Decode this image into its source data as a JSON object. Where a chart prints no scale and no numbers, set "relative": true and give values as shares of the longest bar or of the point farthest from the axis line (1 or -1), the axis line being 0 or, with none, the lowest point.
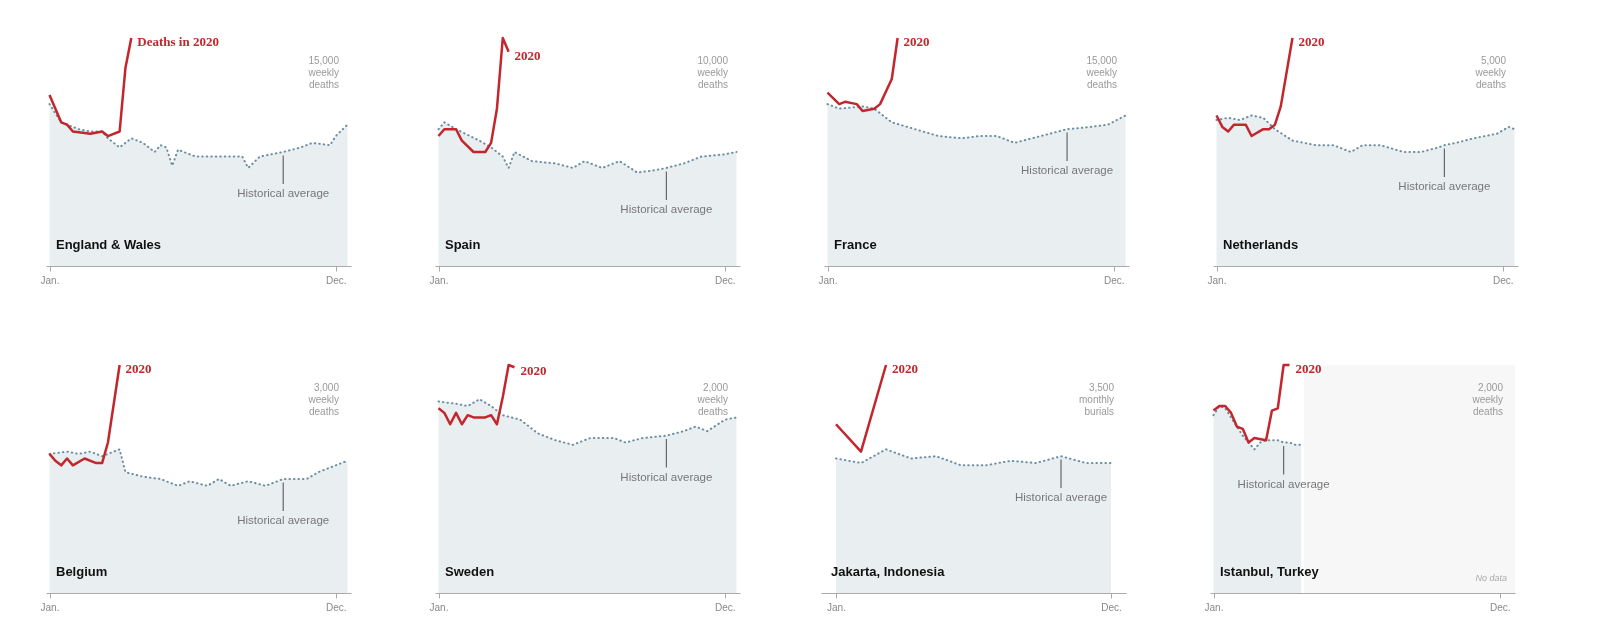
{
  "chart_data": [
    {
      "type": "line",
      "title": "England & Wales",
      "relative": true,
      "line_style": "solid",
      "categories": [
        "Jan.",
        null,
        null,
        null,
        null,
        null,
        null,
        null,
        null,
        null,
        null,
        null,
        null,
        null,
        null,
        null,
        null,
        null,
        null,
        null,
        null,
        null,
        null,
        null,
        null,
        null,
        null,
        null,
        null,
        null,
        null,
        null,
        null,
        null,
        null,
        null,
        null,
        null,
        null,
        null,
        null,
        null,
        null,
        null,
        null,
        null,
        null,
        null,
        null,
        "Dec.",
        null,
        null
      ],
      "annotations": [
        "15,000 weekly deaths",
        "Historical average"
      ],
      "series": [
        {
          "type": "area",
          "line_style": "dotted",
          "color": "#6b8ea3",
          "values": [
            0.71,
            null,
            0.63,
            null,
            null,
            0.6,
            null,
            0.59,
            null,
            0.59,
            0.56,
            null,
            0.52,
            null,
            0.56,
            null,
            0.54,
            null,
            0.5,
            0.53,
            0.52,
            0.44,
            0.51,
            null,
            null,
            0.48,
            null,
            null,
            0.48,
            null,
            null,
            null,
            null,
            0.48,
            0.43,
            null,
            0.48,
            null,
            0.49,
            null,
            0.5,
            null,
            null,
            0.52,
            null,
            0.54,
            null,
            null,
            0.53,
            0.57,
            null,
            0.62
          ]
        },
        {
          "name": "Deaths in 2020",
          "color": "#c1272d",
          "values": [
            0.75,
            null,
            0.63,
            0.62,
            0.59,
            null,
            null,
            0.58,
            null,
            0.59,
            0.57,
            null,
            0.59,
            0.87,
            1.0,
            null,
            null,
            null,
            null,
            null,
            null,
            null,
            null,
            null,
            null,
            null,
            null,
            null,
            null,
            null,
            null,
            null,
            null,
            null,
            null,
            null,
            null,
            null,
            null,
            null,
            null,
            null,
            null,
            null,
            null,
            null,
            null,
            null,
            null,
            null,
            null,
            null
          ]
        }
      ]
    },
    {
      "type": "line",
      "title": "Spain",
      "relative": true,
      "line_style": "solid",
      "categories": [
        "Jan.",
        null,
        null,
        null,
        null,
        null,
        null,
        null,
        null,
        null,
        null,
        null,
        null,
        null,
        null,
        null,
        null,
        null,
        null,
        null,
        null,
        null,
        null,
        null,
        null,
        null,
        null,
        null,
        null,
        null,
        null,
        null,
        null,
        null,
        null,
        null,
        null,
        null,
        null,
        null,
        null,
        null,
        null,
        null,
        null,
        null,
        null,
        null,
        null,
        "Dec.",
        null,
        null
      ],
      "annotations": [
        "10,000 weekly deaths",
        "Historical average"
      ],
      "series": [
        {
          "type": "area",
          "line_style": "dotted",
          "color": "#6b8ea3",
          "values": [
            0.6,
            0.63,
            null,
            0.6,
            null,
            null,
            null,
            0.55,
            null,
            0.52,
            null,
            0.48,
            0.43,
            0.5,
            null,
            null,
            0.46,
            null,
            null,
            null,
            0.45,
            null,
            null,
            0.43,
            null,
            0.46,
            null,
            null,
            0.43,
            null,
            null,
            0.46,
            null,
            null,
            0.41,
            null,
            null,
            0.42,
            null,
            0.43,
            null,
            null,
            0.45,
            null,
            null,
            0.48,
            null,
            null,
            null,
            0.49,
            null,
            0.5
          ]
        },
        {
          "name": "2020",
          "color": "#c1272d",
          "values": [
            0.57,
            0.6,
            null,
            0.6,
            0.55,
            null,
            0.5,
            null,
            0.5,
            0.54,
            0.69,
            1.0,
            0.94,
            null,
            null,
            null,
            null,
            null,
            null,
            null,
            null,
            null,
            null,
            null,
            null,
            null,
            null,
            null,
            null,
            null,
            null,
            null,
            null,
            null,
            null,
            null,
            null,
            null,
            null,
            null,
            null,
            null,
            null,
            null,
            null,
            null,
            null,
            null,
            null,
            null,
            null,
            null
          ]
        }
      ]
    },
    {
      "type": "line",
      "title": "France",
      "relative": true,
      "line_style": "solid",
      "categories": [
        "Jan.",
        null,
        null,
        null,
        null,
        null,
        null,
        null,
        null,
        null,
        null,
        null,
        null,
        null,
        null,
        null,
        null,
        null,
        null,
        null,
        null,
        null,
        null,
        null,
        null,
        null,
        null,
        null,
        null,
        null,
        null,
        null,
        null,
        null,
        null,
        null,
        null,
        null,
        null,
        null,
        null,
        null,
        null,
        null,
        null,
        null,
        null,
        null,
        null,
        "Dec.",
        null,
        null
      ],
      "annotations": [
        "15,000 weekly deaths",
        "Historical average"
      ],
      "series": [
        {
          "type": "area",
          "line_style": "dotted",
          "color": "#6b8ea3",
          "values": [
            0.71,
            null,
            0.69,
            null,
            null,
            null,
            0.7,
            null,
            0.69,
            null,
            null,
            0.63,
            null,
            null,
            null,
            0.6,
            null,
            null,
            null,
            0.57,
            null,
            null,
            null,
            0.56,
            null,
            null,
            0.57,
            null,
            null,
            0.57,
            null,
            null,
            0.54,
            null,
            null,
            0.56,
            null,
            null,
            0.58,
            null,
            null,
            0.6,
            null,
            null,
            null,
            0.61,
            null,
            null,
            0.62,
            null,
            null,
            0.66
          ]
        },
        {
          "name": "2020",
          "color": "#c1272d",
          "values": [
            0.76,
            null,
            0.71,
            0.72,
            null,
            0.71,
            0.68,
            null,
            0.69,
            0.71,
            null,
            0.82,
            1.0,
            null,
            null,
            null,
            null,
            null,
            null,
            null,
            null,
            null,
            null,
            null,
            null,
            null,
            null,
            null,
            null,
            null,
            null,
            null,
            null,
            null,
            null,
            null,
            null,
            null,
            null,
            null,
            null,
            null,
            null,
            null,
            null,
            null,
            null,
            null,
            null,
            null,
            null,
            null
          ]
        }
      ]
    },
    {
      "type": "line",
      "title": "Netherlands",
      "relative": true,
      "line_style": "solid",
      "categories": [
        "Jan.",
        null,
        null,
        null,
        null,
        null,
        null,
        null,
        null,
        null,
        null,
        null,
        null,
        null,
        null,
        null,
        null,
        null,
        null,
        null,
        null,
        null,
        null,
        null,
        null,
        null,
        null,
        null,
        null,
        null,
        null,
        null,
        null,
        null,
        null,
        null,
        null,
        null,
        null,
        null,
        null,
        null,
        null,
        null,
        null,
        null,
        null,
        null,
        null,
        "Dec.",
        null,
        null
      ],
      "annotations": [
        "5,000 weekly deaths",
        "Historical average"
      ],
      "series": [
        {
          "type": "area",
          "line_style": "dotted",
          "color": "#6b8ea3",
          "values": [
            0.64,
            null,
            0.65,
            null,
            0.64,
            null,
            0.66,
            null,
            0.65,
            null,
            0.6,
            null,
            null,
            0.55,
            null,
            null,
            null,
            0.53,
            null,
            null,
            0.53,
            null,
            null,
            0.5,
            null,
            0.53,
            null,
            null,
            0.53,
            null,
            null,
            null,
            0.5,
            null,
            null,
            0.5,
            null,
            null,
            0.52,
            0.53,
            null,
            0.54,
            null,
            null,
            0.56,
            null,
            null,
            null,
            0.58,
            null,
            0.61,
            0.6
          ]
        },
        {
          "name": "2020",
          "color": "#c1272d",
          "values": [
            0.66,
            0.61,
            0.59,
            0.62,
            null,
            0.62,
            0.57,
            null,
            0.6,
            0.6,
            0.62,
            0.7,
            null,
            1.0,
            null,
            null,
            null,
            null,
            null,
            null,
            null,
            null,
            null,
            null,
            null,
            null,
            null,
            null,
            null,
            null,
            null,
            null,
            null,
            null,
            null,
            null,
            null,
            null,
            null,
            null,
            null,
            null,
            null,
            null,
            null,
            null,
            null,
            null,
            null,
            null,
            null,
            null
          ]
        }
      ]
    },
    {
      "type": "line",
      "title": "Belgium",
      "relative": true,
      "line_style": "solid",
      "categories": [
        "Jan.",
        null,
        null,
        null,
        null,
        null,
        null,
        null,
        null,
        null,
        null,
        null,
        null,
        null,
        null,
        null,
        null,
        null,
        null,
        null,
        null,
        null,
        null,
        null,
        null,
        null,
        null,
        null,
        null,
        null,
        null,
        null,
        null,
        null,
        null,
        null,
        null,
        null,
        null,
        null,
        null,
        null,
        null,
        null,
        null,
        null,
        null,
        null,
        null,
        "Dec.",
        null,
        null
      ],
      "annotations": [
        "3,000 weekly deaths",
        "Historical average"
      ],
      "series": [
        {
          "type": "area",
          "line_style": "dotted",
          "color": "#6b8ea3",
          "values": [
            0.61,
            null,
            null,
            0.62,
            null,
            0.61,
            null,
            0.62,
            null,
            0.6,
            null,
            null,
            0.63,
            0.53,
            null,
            null,
            0.51,
            null,
            null,
            0.5,
            null,
            null,
            0.47,
            null,
            0.49,
            null,
            null,
            0.47,
            null,
            0.5,
            null,
            0.47,
            null,
            null,
            0.49,
            null,
            null,
            0.47,
            null,
            null,
            0.5,
            null,
            null,
            null,
            0.5,
            null,
            0.53,
            null,
            null,
            0.56,
            null,
            0.58
          ]
        },
        {
          "name": "2020",
          "color": "#c1272d",
          "values": [
            0.61,
            0.58,
            0.56,
            0.59,
            0.56,
            null,
            0.59,
            null,
            0.57,
            0.57,
            0.66,
            null,
            1.0,
            null,
            null,
            null,
            null,
            null,
            null,
            null,
            null,
            null,
            null,
            null,
            null,
            null,
            null,
            null,
            null,
            null,
            null,
            null,
            null,
            null,
            null,
            null,
            null,
            null,
            null,
            null,
            null,
            null,
            null,
            null,
            null,
            null,
            null,
            null,
            null,
            null,
            null,
            null
          ]
        }
      ]
    },
    {
      "type": "line",
      "title": "Sweden",
      "relative": true,
      "line_style": "solid",
      "categories": [
        "Jan.",
        null,
        null,
        null,
        null,
        null,
        null,
        null,
        null,
        null,
        null,
        null,
        null,
        null,
        null,
        null,
        null,
        null,
        null,
        null,
        null,
        null,
        null,
        null,
        null,
        null,
        null,
        null,
        null,
        null,
        null,
        null,
        null,
        null,
        null,
        null,
        null,
        null,
        null,
        null,
        null,
        null,
        null,
        null,
        null,
        null,
        null,
        null,
        null,
        "Dec.",
        null,
        null
      ],
      "annotations": [
        "2,000 weekly deaths",
        "Historical average"
      ],
      "series": [
        {
          "type": "area",
          "line_style": "dotted",
          "color": "#6b8ea3",
          "values": [
            0.84,
            null,
            null,
            0.83,
            null,
            0.82,
            null,
            0.85,
            null,
            0.82,
            null,
            0.78,
            null,
            null,
            0.76,
            null,
            null,
            0.7,
            null,
            null,
            0.67,
            null,
            null,
            0.65,
            null,
            null,
            0.68,
            null,
            null,
            null,
            0.68,
            null,
            0.66,
            null,
            null,
            0.68,
            null,
            null,
            null,
            0.69,
            null,
            null,
            0.71,
            null,
            0.73,
            null,
            0.71,
            null,
            null,
            0.76,
            null,
            0.77
          ]
        },
        {
          "name": "2020",
          "color": "#c1272d",
          "values": [
            0.81,
            0.79,
            0.74,
            0.79,
            0.74,
            0.78,
            0.77,
            null,
            0.77,
            0.78,
            0.74,
            0.86,
            1.0,
            0.99,
            null,
            null,
            null,
            null,
            null,
            null,
            null,
            null,
            null,
            null,
            null,
            null,
            null,
            null,
            null,
            null,
            null,
            null,
            null,
            null,
            null,
            null,
            null,
            null,
            null,
            null,
            null,
            null,
            null,
            null,
            null,
            null,
            null,
            null,
            null,
            null,
            null,
            null
          ]
        }
      ]
    },
    {
      "type": "line",
      "title": "Jakarta, Indonesia",
      "relative": true,
      "line_style": "solid",
      "categories": [
        "Jan.",
        null,
        null,
        null,
        null,
        null,
        null,
        null,
        null,
        null,
        null,
        "Dec."
      ],
      "annotations": [
        "3,500 monthly burials",
        "Historical average"
      ],
      "series": [
        {
          "type": "area",
          "line_style": "dotted",
          "color": "#6b8ea3",
          "values": [
            0.59,
            0.57,
            0.63,
            0.59,
            0.6,
            0.56,
            0.56,
            0.58,
            0.57,
            0.6,
            0.57,
            0.57
          ]
        },
        {
          "name": "2020",
          "color": "#c1272d",
          "values": [
            0.74,
            0.62,
            1.0,
            null,
            null,
            null,
            null,
            null,
            null,
            null,
            null,
            null
          ]
        }
      ]
    },
    {
      "type": "line",
      "title": "Istanbul, Turkey",
      "relative": true,
      "line_style": "solid",
      "categories": [
        "Jan.",
        null,
        null,
        null,
        null,
        null,
        null,
        null,
        null,
        null,
        null,
        null,
        null,
        null,
        null,
        null,
        null,
        null,
        null,
        null,
        null,
        null,
        null,
        null,
        null,
        null,
        null,
        null,
        null,
        null,
        null,
        null,
        null,
        null,
        null,
        null,
        null,
        null,
        null,
        null,
        null,
        null,
        null,
        null,
        null,
        null,
        null,
        null,
        null,
        "Dec.",
        null,
        null
      ],
      "annotations": [
        "2,000 weekly deaths",
        "Historical average",
        "No data"
      ],
      "series": [
        {
          "type": "area",
          "line_style": "dotted",
          "color": "#6b8ea3",
          "values": [
            0.78,
            0.82,
            0.81,
            0.77,
            0.73,
            0.69,
            0.66,
            0.63,
            0.66,
            0.67,
            0.67,
            0.67,
            0.66,
            0.66,
            0.65,
            0.65,
            null,
            null,
            null,
            null,
            null,
            null,
            null,
            null,
            null,
            null,
            null,
            null,
            null,
            null,
            null,
            null,
            null,
            null,
            null,
            null,
            null,
            null,
            null,
            null,
            null,
            null,
            null,
            null,
            null,
            null,
            null,
            null,
            null,
            null,
            null,
            null
          ]
        },
        {
          "name": "2020",
          "color": "#c1272d",
          "values": [
            0.8,
            0.82,
            0.82,
            0.79,
            0.73,
            0.72,
            0.66,
            0.68,
            null,
            0.67,
            0.8,
            0.81,
            1.0,
            1.0,
            null,
            null,
            null,
            null,
            null,
            null,
            null,
            null,
            null,
            null,
            null,
            null,
            null,
            null,
            null,
            null,
            null,
            null,
            null,
            null,
            null,
            null,
            null,
            null,
            null,
            null,
            null,
            null,
            null,
            null,
            null,
            null,
            null,
            null,
            null,
            null,
            null,
            null
          ]
        }
      ]
    }
  ]
}
